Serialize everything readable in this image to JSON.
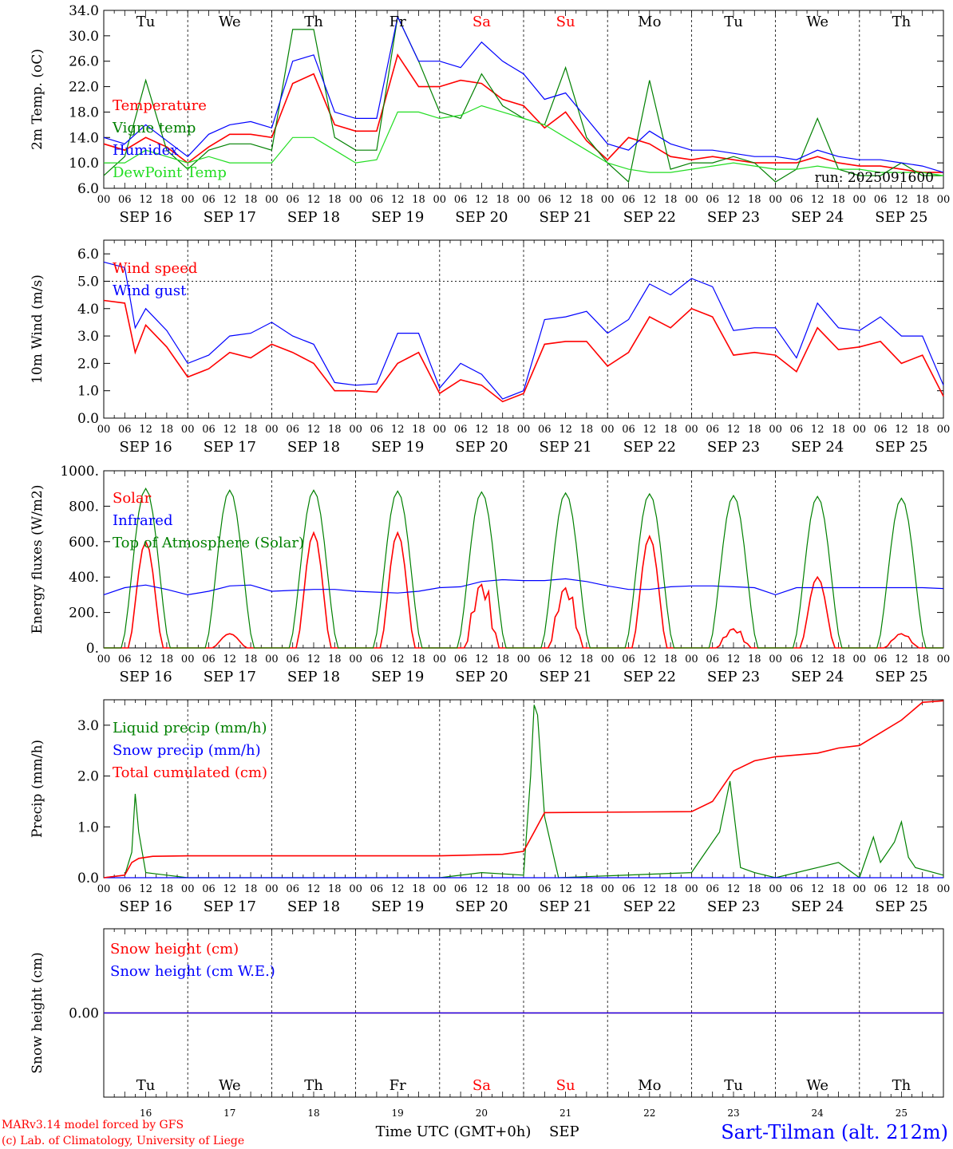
{
  "days": [
    {
      "abbr": "Tu",
      "weekend": false
    },
    {
      "abbr": "We",
      "weekend": false
    },
    {
      "abbr": "Th",
      "weekend": false
    },
    {
      "abbr": "Fr",
      "weekend": false
    },
    {
      "abbr": "Sa",
      "weekend": true
    },
    {
      "abbr": "Su",
      "weekend": true
    },
    {
      "abbr": "Mo",
      "weekend": false
    },
    {
      "abbr": "Tu",
      "weekend": false
    },
    {
      "abbr": "We",
      "weekend": false
    },
    {
      "abbr": "Th",
      "weekend": false
    }
  ],
  "date_labels": [
    "SEP 16",
    "SEP 17",
    "SEP 18",
    "SEP 19",
    "SEP 20",
    "SEP 21",
    "SEP 22",
    "SEP 23",
    "SEP 24",
    "SEP 25"
  ],
  "day_numbers": [
    "16",
    "17",
    "18",
    "19",
    "20",
    "21",
    "22",
    "23",
    "24",
    "25"
  ],
  "hour_ticks": [
    "00",
    "06",
    "12",
    "18"
  ],
  "hour_end": "00",
  "colors": {
    "red": "#ff0000",
    "green": "#008000",
    "blue": "#0000ff",
    "lightgreen": "#22dd22",
    "weekend": "#ff0000"
  },
  "footer": {
    "credit_line1": "MARv3.14 model forced by GFS",
    "credit_line2": "(c) Lab. of Climatology, University of Liege",
    "xaxis_label": "Time UTC (GMT+0h)",
    "month": "SEP",
    "station": "Sart-Tilman (alt. 212m)"
  },
  "chart_data": [
    {
      "type": "line",
      "ylabel": "2m Temp. (oC)",
      "ylim": [
        6.0,
        34.0
      ],
      "yticks": [
        "6.0",
        "10.0",
        "14.0",
        "18.0",
        "22.0",
        "26.0",
        "30.0",
        "34.0"
      ],
      "ytick_values": [
        6,
        10,
        14,
        18,
        22,
        26,
        30,
        34
      ],
      "x_unit": "hours since SEP 16 00 UTC",
      "run_label": "run: 2025091600",
      "series": [
        {
          "name": "Temperature",
          "color": "#ff0000",
          "x": [
            0,
            6,
            12,
            18,
            24,
            30,
            36,
            42,
            48,
            54,
            60,
            66,
            72,
            78,
            84,
            90,
            96,
            102,
            108,
            114,
            120,
            126,
            132,
            138,
            144,
            150,
            156,
            162,
            168,
            174,
            180,
            186,
            192,
            198,
            204,
            210,
            216,
            222,
            228,
            234,
            240
          ],
          "y": [
            13,
            12,
            14,
            12.5,
            10,
            12.5,
            14.5,
            14.5,
            14,
            22.5,
            24,
            16,
            15,
            15,
            27,
            22,
            22,
            23,
            22.5,
            20,
            19,
            15.5,
            18,
            13.5,
            10.5,
            14,
            13,
            11,
            10.5,
            11,
            10.5,
            10,
            10,
            10,
            11,
            10,
            9.5,
            9.5,
            9,
            8.5,
            8.5
          ]
        },
        {
          "name": "Vigne temp",
          "color": "#008000",
          "x": [
            0,
            6,
            12,
            18,
            24,
            30,
            36,
            42,
            48,
            54,
            60,
            66,
            72,
            78,
            84,
            90,
            96,
            102,
            108,
            114,
            120,
            126,
            132,
            138,
            144,
            150,
            156,
            162,
            168,
            174,
            180,
            186,
            192,
            198,
            204,
            210,
            216,
            222,
            228,
            234,
            240
          ],
          "y": [
            8,
            11,
            23,
            12,
            9,
            12,
            13,
            13,
            12,
            31,
            31,
            14,
            12,
            12,
            33,
            26,
            18,
            17,
            24,
            19,
            17,
            16,
            25,
            14,
            10,
            7,
            23,
            9,
            10,
            10,
            11,
            10,
            7,
            9,
            17,
            9,
            8,
            8,
            10,
            8,
            8
          ]
        },
        {
          "name": "Humidex",
          "color": "#0000ff",
          "x": [
            0,
            6,
            12,
            18,
            24,
            30,
            36,
            42,
            48,
            54,
            60,
            66,
            72,
            78,
            84,
            90,
            96,
            102,
            108,
            114,
            120,
            126,
            132,
            138,
            144,
            150,
            156,
            162,
            168,
            174,
            180,
            186,
            192,
            198,
            204,
            210,
            216,
            222,
            228,
            234,
            240
          ],
          "y": [
            14,
            13,
            16,
            13.5,
            11,
            14.5,
            16,
            16.5,
            15.5,
            26,
            27,
            18,
            17,
            17,
            33,
            26,
            26,
            25,
            29,
            26,
            24,
            20,
            21,
            17,
            13,
            12,
            15,
            13,
            12,
            12,
            11.5,
            11,
            11,
            10.5,
            12,
            11,
            10.5,
            10.5,
            10,
            9.5,
            8.5
          ]
        },
        {
          "name": "DewPoint Temp",
          "color": "#22dd22",
          "x": [
            0,
            6,
            12,
            18,
            24,
            30,
            36,
            42,
            48,
            54,
            60,
            66,
            72,
            78,
            84,
            90,
            96,
            102,
            108,
            114,
            120,
            126,
            132,
            138,
            144,
            150,
            156,
            162,
            168,
            174,
            180,
            186,
            192,
            198,
            204,
            210,
            216,
            222,
            228,
            234,
            240
          ],
          "y": [
            10,
            10,
            12,
            11,
            10,
            11,
            10,
            10,
            10,
            14,
            14,
            12,
            10,
            10.5,
            18,
            18,
            17,
            17.5,
            19,
            18,
            17,
            16,
            14,
            12,
            10,
            9,
            8.5,
            8.5,
            9,
            9.5,
            10,
            9.5,
            9,
            9,
            9.5,
            9,
            9,
            8.5,
            8.5,
            8.5,
            8
          ]
        }
      ]
    },
    {
      "type": "line",
      "ylabel": "10m Wind (m/s)",
      "ylim": [
        0.0,
        6.5
      ],
      "yticks": [
        "0.0",
        "1.0",
        "2.0",
        "3.0",
        "4.0",
        "5.0",
        "6.0"
      ],
      "ytick_values": [
        0,
        1,
        2,
        3,
        4,
        5,
        6
      ],
      "ref_line": 5.0,
      "series": [
        {
          "name": "Wind speed",
          "color": "#ff0000",
          "x": [
            0,
            6,
            9,
            12,
            18,
            24,
            30,
            36,
            42,
            48,
            54,
            60,
            66,
            72,
            78,
            84,
            90,
            96,
            102,
            108,
            114,
            120,
            126,
            132,
            138,
            144,
            150,
            156,
            162,
            168,
            174,
            180,
            186,
            192,
            198,
            204,
            210,
            216,
            222,
            228,
            234,
            240
          ],
          "y": [
            4.3,
            4.2,
            2.4,
            3.4,
            2.6,
            1.5,
            1.8,
            2.4,
            2.2,
            2.7,
            2.4,
            2.0,
            1.0,
            1.0,
            0.95,
            2.0,
            2.4,
            0.9,
            1.4,
            1.2,
            0.6,
            0.9,
            2.7,
            2.8,
            2.8,
            1.9,
            2.4,
            3.7,
            3.3,
            4.0,
            3.7,
            2.3,
            2.4,
            2.3,
            1.7,
            3.3,
            2.5,
            2.6,
            2.8,
            2.0,
            2.3,
            0.8
          ]
        },
        {
          "name": "Wind gust",
          "color": "#0000ff",
          "x": [
            0,
            6,
            9,
            12,
            18,
            24,
            30,
            36,
            42,
            48,
            54,
            60,
            66,
            72,
            78,
            84,
            90,
            96,
            102,
            108,
            114,
            120,
            126,
            132,
            138,
            144,
            150,
            156,
            162,
            168,
            174,
            180,
            186,
            192,
            198,
            204,
            210,
            216,
            222,
            228,
            234,
            240
          ],
          "y": [
            5.7,
            5.5,
            3.3,
            4.0,
            3.2,
            2.0,
            2.3,
            3.0,
            3.1,
            3.5,
            3.0,
            2.7,
            1.3,
            1.2,
            1.25,
            3.1,
            3.1,
            1.1,
            2.0,
            1.6,
            0.7,
            1.0,
            3.6,
            3.7,
            3.9,
            3.1,
            3.6,
            4.9,
            4.5,
            5.1,
            4.8,
            3.2,
            3.3,
            3.3,
            2.2,
            4.2,
            3.3,
            3.2,
            3.7,
            3.0,
            3.0,
            1.2
          ]
        }
      ]
    },
    {
      "type": "line",
      "ylabel": "Energy fluxes (W/m2)",
      "ylim": [
        0,
        1000
      ],
      "yticks": [
        "0.",
        "200.",
        "400.",
        "600.",
        "800.",
        "1000."
      ],
      "ytick_values": [
        0,
        200,
        400,
        600,
        800,
        1000
      ],
      "series": [
        {
          "name": "Solar",
          "color": "#ff0000",
          "kind": "daily",
          "peaks": [
            600,
            80,
            650,
            650,
            560,
            480,
            630,
            160,
            400,
            100
          ],
          "dips": [
            0,
            0,
            0,
            0,
            0.55,
            0.45,
            0,
            0.5,
            0,
            0.3
          ]
        },
        {
          "name": "Infrared",
          "color": "#0000ff",
          "x": [
            0,
            6,
            12,
            18,
            24,
            30,
            36,
            42,
            48,
            54,
            60,
            66,
            72,
            78,
            84,
            90,
            96,
            102,
            108,
            114,
            120,
            126,
            132,
            138,
            144,
            150,
            156,
            162,
            168,
            174,
            180,
            186,
            192,
            198,
            204,
            210,
            216,
            222,
            228,
            234,
            240
          ],
          "y": [
            300,
            340,
            355,
            330,
            300,
            320,
            350,
            355,
            320,
            325,
            330,
            330,
            320,
            315,
            310,
            320,
            340,
            345,
            375,
            385,
            380,
            380,
            390,
            375,
            350,
            330,
            330,
            345,
            350,
            350,
            345,
            340,
            300,
            340,
            340,
            340,
            340,
            340,
            340,
            340,
            335
          ]
        },
        {
          "name": "Top of Atmosphere (Solar)",
          "color": "#008000",
          "kind": "daily",
          "peaks": [
            900,
            890,
            890,
            885,
            880,
            875,
            870,
            860,
            855,
            845
          ]
        }
      ]
    },
    {
      "type": "line",
      "ylabel": "Precip (mm/h)",
      "ylim": [
        0.0,
        3.5
      ],
      "yticks": [
        "0.0",
        "1.0",
        "2.0",
        "3.0"
      ],
      "ytick_values": [
        0,
        1,
        2,
        3
      ],
      "series": [
        {
          "name": "Liquid precip (mm/h)",
          "color": "#008000",
          "x": [
            0,
            6,
            8,
            9,
            10,
            12,
            18,
            24,
            48,
            96,
            108,
            120,
            122,
            123,
            124,
            126,
            130,
            168,
            172,
            176,
            179,
            182,
            186,
            192,
            204,
            210,
            216,
            220,
            222,
            224,
            226,
            228,
            230,
            232,
            240
          ],
          "y": [
            0,
            0.05,
            0.5,
            1.65,
            0.9,
            0.1,
            0.05,
            0,
            0,
            0,
            0.1,
            0.05,
            2.0,
            3.4,
            3.2,
            1.2,
            0,
            0.1,
            0.5,
            0.9,
            1.9,
            0.2,
            0.1,
            0,
            0.2,
            0.3,
            0,
            0.8,
            0.3,
            0.5,
            0.7,
            1.1,
            0.4,
            0.2,
            0.05
          ]
        },
        {
          "name": "Snow precip (mm/h)",
          "color": "#0000ff",
          "x": [
            0,
            240
          ],
          "y": [
            0,
            0
          ]
        },
        {
          "name": "Total cumulated (cm)",
          "color": "#ff0000",
          "x": [
            0,
            6,
            8,
            10,
            14,
            24,
            96,
            114,
            120,
            123,
            126,
            168,
            174,
            180,
            186,
            192,
            204,
            210,
            216,
            222,
            228,
            234,
            240
          ],
          "y": [
            0,
            0.05,
            0.3,
            0.38,
            0.42,
            0.43,
            0.43,
            0.46,
            0.52,
            0.9,
            1.28,
            1.3,
            1.5,
            2.1,
            2.3,
            2.38,
            2.45,
            2.55,
            2.6,
            2.85,
            3.1,
            3.45,
            3.48
          ]
        }
      ]
    },
    {
      "type": "line",
      "ylabel": "Snow height (cm)",
      "ylim": [
        -1.0,
        1.0
      ],
      "yticks": [
        "0.00"
      ],
      "ytick_values": [
        0
      ],
      "series": [
        {
          "name": "Snow height (cm)",
          "color": "#ff0000",
          "x": [
            0,
            240
          ],
          "y": [
            0,
            0
          ]
        },
        {
          "name": "Snow height (cm W.E.)",
          "color": "#0000ff",
          "x": [
            0,
            240
          ],
          "y": [
            0,
            0
          ]
        }
      ]
    }
  ]
}
